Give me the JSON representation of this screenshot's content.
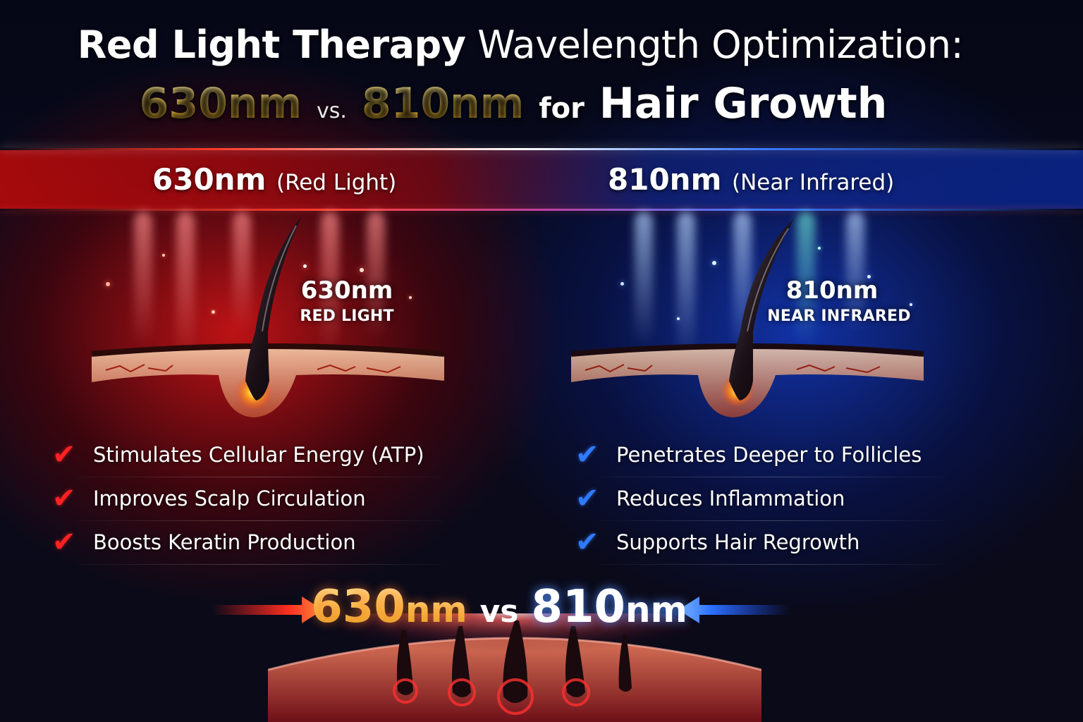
{
  "title": {
    "line1_bold": "Red Light Therapy",
    "line1_light": "Wavelength Optimization:",
    "line2_a": "630nm",
    "line2_vs": "vs.",
    "line2_b": "810nm",
    "line2_for": "for",
    "line2_end": "Hair Growth"
  },
  "left": {
    "heading": "630nm",
    "heading_paren": "(Red Light)",
    "follicle_value": "630nm",
    "follicle_label": "RED LIGHT",
    "accent": "#ff2222",
    "benefits": [
      "Stimulates Cellular Energy (ATP)",
      "Improves Scalp Circulation",
      "Boosts Keratin Production"
    ]
  },
  "right": {
    "heading": "810nm",
    "heading_paren": "(Near Infrared)",
    "follicle_value": "810nm",
    "follicle_label": "NEAR INFRARED",
    "accent": "#2f7bff",
    "benefits": [
      "Penetrates Deeper to Follicles",
      "Reduces Inflammation",
      "Supports Hair Regrowth"
    ]
  },
  "comparison": {
    "left_num": "630",
    "left_unit": "nm",
    "vs": "vs",
    "right_num": "810",
    "right_unit": "nm"
  },
  "icons": {
    "check": "checkmark-icon",
    "arrow_left": "arrow-right-icon",
    "arrow_right": "arrow-left-icon"
  }
}
